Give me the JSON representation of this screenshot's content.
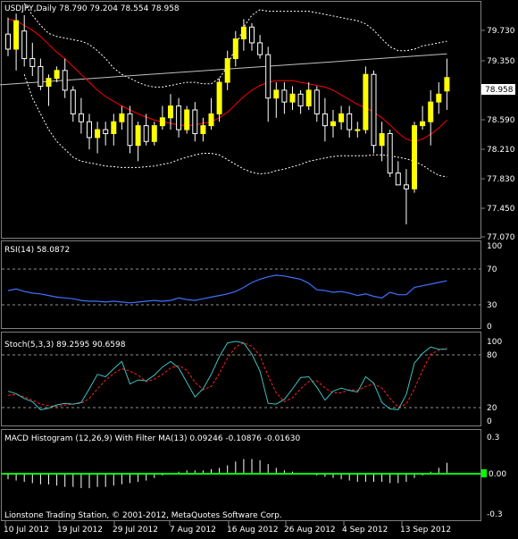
{
  "colors": {
    "background": "#000000",
    "frame": "#808080",
    "bull_candle": "#ffff00",
    "bear_candle": "#000000",
    "candle_outline": "#ffffff",
    "ma": "#ff0000",
    "bands": "#ffffff",
    "trend_line": "#c0c0c0",
    "rsi": "#3f6fff",
    "stoch_main": "#40c0c0",
    "stoch_signal": "#ff2020",
    "macd_histogram": "#ffffff",
    "macd_signal": "#00ff00",
    "price_tag_bg": "#ffffff",
    "price_tag_text": "#000000"
  },
  "header": {
    "main": "USDJPY,Daily  78.790 79.204 78.554 78.958",
    "rsi": "RSI(14) 58.0872",
    "stoch": "Stoch(5,3,3) 89.2595 90.6598",
    "macd": "MACD Histogram (12,26,9) With Filter MA(13) 0.09246 -0.10876 -0.01630",
    "footer": "Lionstone Trading Station, © 2001-2012, MetaQuotes Software Corp."
  },
  "axes": {
    "price_ticks": [
      "79.730",
      "79.350",
      "78.970",
      "78.590",
      "78.210",
      "77.830",
      "77.450",
      "77.070"
    ],
    "current_price": "78.958",
    "rsi_ticks": [
      "100",
      "70",
      "30",
      "0"
    ],
    "stoch_ticks": [
      "100",
      "80",
      "20",
      "0"
    ],
    "macd_ticks": [
      "0.3",
      "0.00",
      "-0.3"
    ],
    "dates": [
      "10 Jul 2012",
      "19 Jul 2012",
      "29 Jul 2012",
      "7 Aug 2012",
      "16 Aug 2012",
      "26 Aug 2012",
      "4 Sep 2012",
      "13 Sep 2012"
    ]
  },
  "chart_data": [
    {
      "type": "candlestick",
      "title": "USDJPY,Daily",
      "ylim": [
        76.93,
        79.92
      ],
      "candles": [
        [
          79.51,
          79.72,
          79.23,
          79.32
        ],
        [
          79.32,
          79.77,
          79.05,
          79.68
        ],
        [
          79.55,
          79.75,
          79.1,
          79.2
        ],
        [
          79.2,
          79.4,
          78.98,
          79.1
        ],
        [
          79.1,
          79.2,
          78.8,
          78.85
        ],
        [
          78.85,
          79.0,
          78.6,
          78.95
        ],
        [
          78.95,
          79.1,
          78.9,
          79.05
        ],
        [
          79.05,
          79.2,
          78.7,
          78.8
        ],
        [
          78.8,
          78.85,
          78.4,
          78.5
        ],
        [
          78.5,
          78.7,
          78.25,
          78.4
        ],
        [
          78.4,
          78.5,
          78.05,
          78.2
        ],
        [
          78.2,
          78.4,
          78.0,
          78.3
        ],
        [
          78.3,
          78.4,
          78.1,
          78.25
        ],
        [
          78.25,
          78.5,
          78.1,
          78.4
        ],
        [
          78.4,
          78.6,
          78.3,
          78.5
        ],
        [
          78.5,
          78.6,
          78.0,
          78.1
        ],
        [
          78.1,
          78.4,
          77.9,
          78.35
        ],
        [
          78.35,
          78.5,
          78.1,
          78.15
        ],
        [
          78.15,
          78.4,
          78.1,
          78.35
        ],
        [
          78.35,
          78.6,
          78.3,
          78.45
        ],
        [
          78.45,
          78.75,
          78.3,
          78.6
        ],
        [
          78.6,
          78.7,
          78.2,
          78.3
        ],
        [
          78.3,
          78.6,
          78.25,
          78.55
        ],
        [
          78.55,
          78.65,
          78.15,
          78.25
        ],
        [
          78.25,
          78.45,
          78.15,
          78.35
        ],
        [
          78.35,
          78.7,
          78.3,
          78.5
        ],
        [
          78.5,
          78.95,
          78.4,
          78.9
        ],
        [
          78.9,
          79.3,
          78.8,
          79.2
        ],
        [
          79.2,
          79.55,
          79.1,
          79.45
        ],
        [
          79.45,
          79.7,
          79.3,
          79.6
        ],
        [
          79.6,
          79.65,
          79.3,
          79.4
        ],
        [
          79.4,
          79.5,
          79.2,
          79.25
        ],
        [
          79.25,
          79.35,
          78.4,
          78.7
        ],
        [
          78.7,
          78.9,
          78.45,
          78.8
        ],
        [
          78.8,
          78.9,
          78.5,
          78.65
        ],
        [
          78.65,
          78.85,
          78.55,
          78.75
        ],
        [
          78.75,
          78.8,
          78.5,
          78.6
        ],
        [
          78.6,
          78.9,
          78.55,
          78.8
        ],
        [
          78.8,
          78.85,
          78.4,
          78.5
        ],
        [
          78.5,
          78.7,
          78.15,
          78.35
        ],
        [
          78.35,
          78.55,
          78.2,
          78.4
        ],
        [
          78.4,
          78.6,
          78.3,
          78.5
        ],
        [
          78.5,
          78.6,
          78.2,
          78.3
        ],
        [
          78.3,
          78.4,
          78.2,
          78.3
        ],
        [
          78.3,
          79.1,
          78.25,
          79.0
        ],
        [
          79.0,
          79.05,
          78.0,
          78.1
        ],
        [
          78.1,
          78.4,
          77.9,
          78.25
        ],
        [
          78.25,
          78.3,
          77.7,
          77.75
        ],
        [
          77.75,
          77.9,
          77.6,
          77.6
        ],
        [
          77.6,
          77.8,
          77.1,
          77.55
        ],
        [
          77.55,
          78.4,
          77.5,
          78.35
        ],
        [
          78.35,
          78.6,
          78.3,
          78.4
        ],
        [
          78.4,
          78.8,
          78.1,
          78.65
        ],
        [
          78.65,
          78.9,
          78.5,
          78.75
        ],
        [
          78.79,
          79.2,
          78.55,
          78.96
        ]
      ],
      "ma": [
        79.7,
        79.68,
        79.62,
        79.56,
        79.48,
        79.38,
        79.28,
        79.2,
        79.1,
        79.0,
        78.9,
        78.8,
        78.72,
        78.66,
        78.6,
        78.55,
        78.5,
        78.46,
        78.42,
        78.4,
        78.38,
        78.36,
        78.35,
        78.36,
        78.38,
        78.4,
        78.45,
        78.52,
        78.62,
        78.72,
        78.8,
        78.86,
        78.9,
        78.92,
        78.92,
        78.92,
        78.9,
        78.88,
        78.86,
        78.84,
        78.8,
        78.74,
        78.68,
        78.62,
        78.58,
        78.52,
        78.45,
        78.36,
        78.26,
        78.18,
        78.15,
        78.18,
        78.24,
        78.32,
        78.42
      ],
      "upper_band": [
        null,
        null,
        79.9,
        79.75,
        79.62,
        79.52,
        79.48,
        79.46,
        79.44,
        79.42,
        79.38,
        79.3,
        79.2,
        79.08,
        79.0,
        78.95,
        78.9,
        78.86,
        78.84,
        78.84,
        78.86,
        78.88,
        78.9,
        78.9,
        78.88,
        78.88,
        78.95,
        79.1,
        79.35,
        79.6,
        79.75,
        79.82,
        79.8,
        79.8,
        79.8,
        79.8,
        79.8,
        79.8,
        79.78,
        79.76,
        79.74,
        79.72,
        79.7,
        79.68,
        79.64,
        79.56,
        79.45,
        79.35,
        79.3,
        79.3,
        79.32,
        79.36,
        79.38,
        79.4,
        79.42
      ],
      "lower_band": [
        null,
        null,
        79.0,
        78.7,
        78.5,
        78.3,
        78.15,
        78.05,
        77.95,
        77.9,
        77.88,
        77.86,
        77.84,
        77.83,
        77.82,
        77.82,
        77.82,
        77.83,
        77.84,
        77.86,
        77.88,
        77.92,
        77.95,
        77.98,
        78.0,
        78.0,
        77.98,
        77.92,
        77.86,
        77.8,
        77.76,
        77.74,
        77.75,
        77.78,
        77.8,
        77.83,
        77.86,
        77.9,
        77.92,
        77.94,
        77.96,
        77.97,
        77.97,
        77.97,
        77.97,
        77.98,
        77.98,
        77.97,
        77.95,
        77.93,
        77.9,
        77.85,
        77.78,
        77.72,
        77.7
      ],
      "trend_line": {
        "from": [
          0,
          78.88
        ],
        "to": [
          54,
          79.26
        ]
      }
    },
    {
      "type": "line",
      "title": "RSI(14)",
      "ylim": [
        0,
        100
      ],
      "levels": [
        70,
        30
      ],
      "values": [
        46,
        48,
        45,
        43,
        42,
        40,
        38,
        37,
        36,
        34,
        33,
        33,
        32,
        33,
        32,
        31,
        32,
        33,
        34,
        33,
        34,
        37,
        35,
        34,
        36,
        38,
        40,
        42,
        45,
        50,
        56,
        60,
        63,
        65,
        64,
        62,
        60,
        55,
        47,
        46,
        44,
        45,
        43,
        40,
        42,
        39,
        37,
        44,
        41,
        41,
        50,
        52,
        54,
        56,
        58.09
      ]
    },
    {
      "type": "line",
      "title": "Stoch(5,3,3)",
      "ylim": [
        0,
        100
      ],
      "levels": [
        80,
        20
      ],
      "main": [
        37,
        34,
        28,
        24,
        14,
        16,
        20,
        22,
        21,
        23,
        40,
        58,
        55,
        65,
        74,
        46,
        51,
        50,
        57,
        67,
        74,
        66,
        48,
        30,
        40,
        58,
        80,
        97,
        99,
        97,
        83,
        62,
        22,
        21,
        27,
        40,
        54,
        55,
        42,
        26,
        37,
        41,
        38,
        36,
        55,
        47,
        23,
        15,
        14,
        33,
        72,
        84,
        92,
        89.26,
        89.26
      ],
      "signal": [
        32,
        33,
        30,
        26,
        21,
        19,
        18,
        20,
        21,
        22,
        28,
        40,
        51,
        59,
        65,
        62,
        57,
        49,
        52,
        58,
        66,
        69,
        63,
        48,
        39,
        43,
        59,
        78,
        92,
        97,
        93,
        81,
        56,
        35,
        24,
        29,
        40,
        49,
        50,
        41,
        35,
        35,
        39,
        38,
        43,
        46,
        41,
        28,
        17,
        21,
        40,
        63,
        83,
        88,
        90.66
      ]
    },
    {
      "type": "histogram",
      "title": "MACD Histogram (12,26,9) With Filter MA(13)",
      "ylim": [
        -0.3,
        0.3
      ],
      "zero_level": 0,
      "values": [
        -0.04,
        -0.05,
        -0.06,
        -0.07,
        -0.08,
        -0.08,
        -0.09,
        -0.1,
        -0.1,
        -0.11,
        -0.11,
        -0.1,
        -0.1,
        -0.09,
        -0.08,
        -0.07,
        -0.06,
        -0.05,
        -0.03,
        -0.01,
        0.01,
        0.02,
        0.03,
        0.03,
        0.03,
        0.04,
        0.05,
        0.07,
        0.1,
        0.12,
        0.12,
        0.11,
        0.08,
        0.05,
        0.03,
        0.02,
        0.01,
        0.0,
        -0.01,
        -0.02,
        -0.03,
        -0.04,
        -0.05,
        -0.06,
        -0.06,
        -0.06,
        -0.06,
        -0.07,
        -0.07,
        -0.06,
        -0.03,
        -0.01,
        0.02,
        0.05,
        0.09
      ]
    }
  ]
}
